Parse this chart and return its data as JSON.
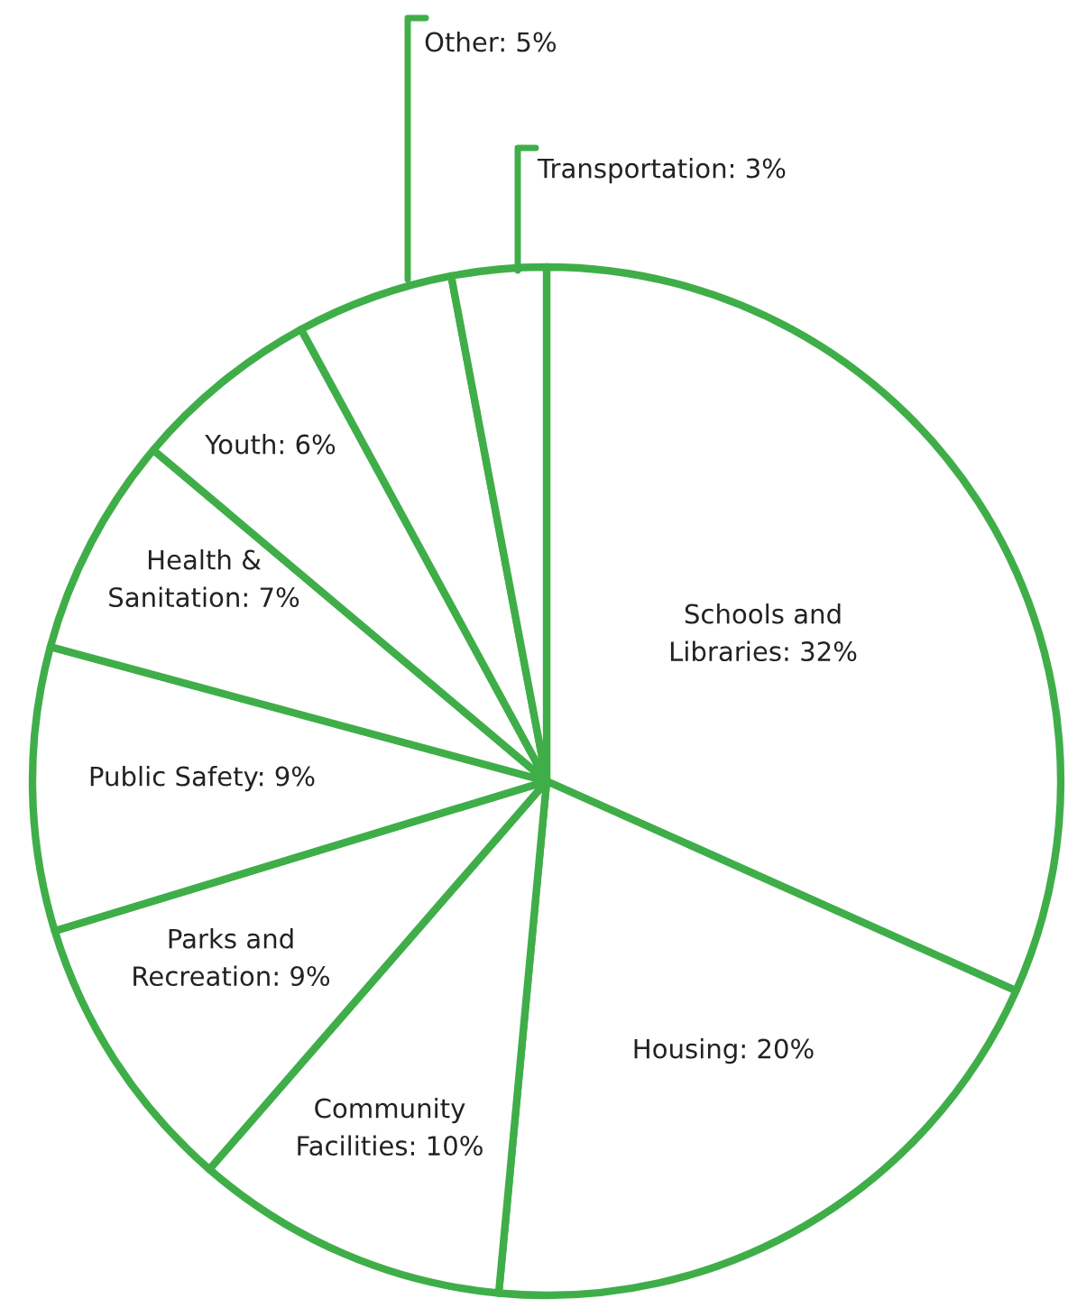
{
  "chart_data": {
    "type": "pie",
    "categories": [
      "Schools and\nLibraries",
      "Housing",
      "Community\nFacilities",
      "Parks and\nRecreation",
      "Public Safety",
      "Health &\nSanitation",
      "Youth",
      "Other",
      "Transportation"
    ],
    "values": [
      32,
      20,
      10,
      9,
      9,
      7,
      6,
      5,
      3
    ],
    "value_labels": [
      "32%",
      "20%",
      "10%",
      "9%",
      "9%",
      "7%",
      "6%",
      "5%",
      "3%"
    ],
    "colors": [
      "#3fae49",
      "#3fae49",
      "#3fae49",
      "#3fae49",
      "#3fae49",
      "#3fae49",
      "#3fae49",
      "#3fae49",
      "#3fae49"
    ],
    "legend": false
  }
}
